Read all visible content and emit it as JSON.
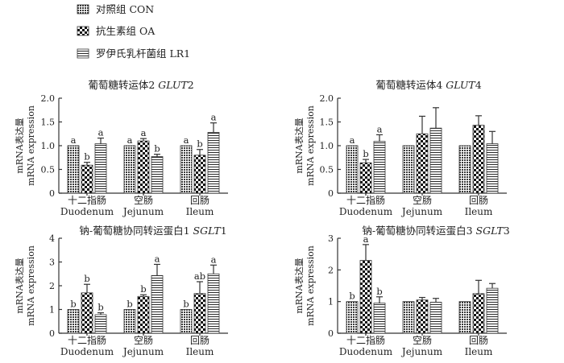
{
  "legend": [
    {
      "label": "对照组  CON",
      "pattern": "con"
    },
    {
      "label": "抗生素组  OA",
      "pattern": "oa"
    },
    {
      "label": "罗伊氏乳杆菌组  LR1",
      "pattern": "lr1"
    }
  ],
  "chart_data": [
    {
      "type": "bar",
      "title_cn": "葡萄糖转运体2 ",
      "title_it": "GLUT",
      "title_num": "2",
      "ylabel_cn": "mRNA表达量",
      "ylabel_en": "mRNA expression",
      "ylim": [
        0,
        2.0
      ],
      "yticks": [
        "0",
        "0.5",
        "1.0",
        "1.5",
        "2.0"
      ],
      "categories_cn": [
        "十二指肠",
        "空肠",
        "回肠"
      ],
      "categories_en": [
        "Duodenum",
        "Jejunum",
        "Ileum"
      ],
      "series": [
        {
          "name": "对照组  CON",
          "values": [
            1.0,
            1.0,
            1.0
          ],
          "errors": [
            0.0,
            0.0,
            0.0
          ],
          "labels": [
            "a",
            "a",
            "a"
          ]
        },
        {
          "name": "抗生素组  OA",
          "values": [
            0.59,
            1.1,
            0.8
          ],
          "errors": [
            0.06,
            0.05,
            0.12
          ],
          "labels": [
            "b",
            "a",
            "b"
          ]
        },
        {
          "name": "罗伊氏乳杆菌组  LR1",
          "values": [
            1.04,
            0.77,
            1.28
          ],
          "errors": [
            0.12,
            0.05,
            0.2
          ],
          "labels": [
            "a",
            "b",
            "a"
          ]
        }
      ]
    },
    {
      "type": "bar",
      "title_cn": "葡萄糖转运体4 ",
      "title_it": "GLUT",
      "title_num": "4",
      "ylabel_cn": "mRNA表达量",
      "ylabel_en": "mRNA expression",
      "ylim": [
        0,
        2.0
      ],
      "yticks": [
        "0",
        "0.5",
        "1.0",
        "1.5",
        "2.0"
      ],
      "categories_cn": [
        "十二指肠",
        "空肠",
        "回肠"
      ],
      "categories_en": [
        "Duodenum",
        "Jejunum",
        "Ileum"
      ],
      "series": [
        {
          "name": "对照组  CON",
          "values": [
            1.0,
            1.0,
            1.0
          ],
          "errors": [
            0.0,
            0.0,
            0.0
          ],
          "labels": [
            "a",
            "",
            ""
          ]
        },
        {
          "name": "抗生素组  OA",
          "values": [
            0.64,
            1.25,
            1.43
          ],
          "errors": [
            0.07,
            0.37,
            0.2
          ],
          "labels": [
            "b",
            "",
            ""
          ]
        },
        {
          "name": "罗伊氏乳杆菌组  LR1",
          "values": [
            1.09,
            1.37,
            1.04
          ],
          "errors": [
            0.14,
            0.43,
            0.26
          ],
          "labels": [
            "a",
            "",
            ""
          ]
        }
      ]
    },
    {
      "type": "bar",
      "title_cn": "钠-葡萄糖协同转运蛋白1 ",
      "title_it": "SGLT",
      "title_num": "1",
      "ylabel_cn": "mRNA表达量",
      "ylabel_en": "mRNA expression",
      "ylim": [
        0,
        4
      ],
      "yticks": [
        "0",
        "1",
        "2",
        "3",
        "4"
      ],
      "categories_cn": [
        "十二指肠",
        "空肠",
        "回肠"
      ],
      "categories_en": [
        "Duodenum",
        "Jejunum",
        "Ileum"
      ],
      "series": [
        {
          "name": "对照组  CON",
          "values": [
            1.0,
            1.0,
            1.0
          ],
          "errors": [
            0.0,
            0.0,
            0.0
          ],
          "labels": [
            "b",
            "b",
            "b"
          ]
        },
        {
          "name": "抗生素组  OA",
          "values": [
            1.7,
            1.55,
            1.67
          ],
          "errors": [
            0.36,
            0.07,
            0.5
          ],
          "labels": [
            "b",
            "b",
            "ab"
          ]
        },
        {
          "name": "罗伊氏乳杆菌组  LR1",
          "values": [
            0.78,
            2.43,
            2.5
          ],
          "errors": [
            0.08,
            0.47,
            0.37
          ],
          "labels": [
            "b",
            "a",
            "a"
          ]
        }
      ]
    },
    {
      "type": "bar",
      "title_cn": "钠-葡萄糖协同转运蛋白3 ",
      "title_it": "SGLT",
      "title_num": "3",
      "ylabel_cn": "mRNA表达量",
      "ylabel_en": "mRNA expression",
      "ylim": [
        0,
        3
      ],
      "yticks": [
        "0",
        "1",
        "2",
        "3"
      ],
      "categories_cn": [
        "十二指肠",
        "空肠",
        "回肠"
      ],
      "categories_en": [
        "Duodenum",
        "Jejunum",
        "Ileum"
      ],
      "series": [
        {
          "name": "对照组  CON",
          "values": [
            1.0,
            1.0,
            1.0
          ],
          "errors": [
            0.0,
            0.0,
            0.0
          ],
          "labels": [
            "b",
            "",
            ""
          ]
        },
        {
          "name": "抗生素组  OA",
          "values": [
            2.3,
            1.05,
            1.25
          ],
          "errors": [
            0.5,
            0.08,
            0.42
          ],
          "labels": [
            "a",
            "",
            ""
          ]
        },
        {
          "name": "罗伊氏乳杆菌组  LR1",
          "values": [
            0.95,
            0.98,
            1.42
          ],
          "errors": [
            0.2,
            0.12,
            0.15
          ],
          "labels": [
            "b",
            "",
            ""
          ]
        }
      ]
    }
  ]
}
